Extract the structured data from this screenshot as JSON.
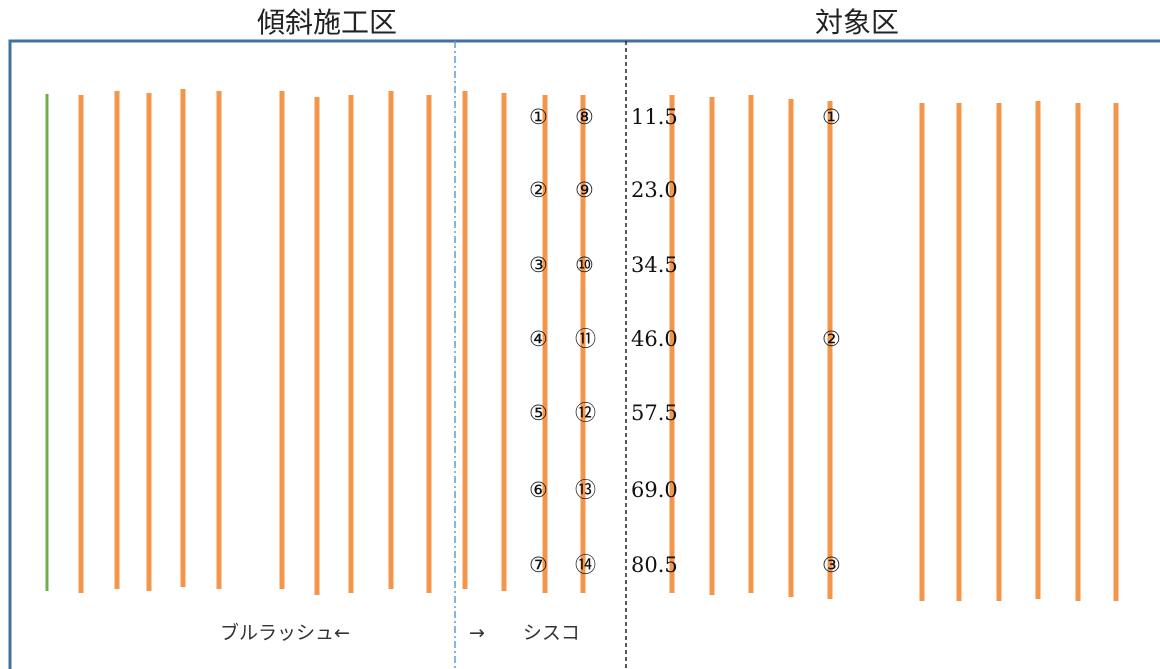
{
  "titles": {
    "left": "傾斜施工区",
    "right": "対象区"
  },
  "sampling_points": {
    "column_a": [
      "①",
      "②",
      "③",
      "④",
      "⑤",
      "⑥",
      "⑦"
    ],
    "column_b": [
      "⑧",
      "⑨",
      "⑩",
      "⑪",
      "⑫",
      "⑬",
      "⑭"
    ],
    "values": [
      "11.5",
      "23.0",
      "34.5",
      "46.0",
      "57.5",
      "69.0",
      "80.5"
    ]
  },
  "target_points": [
    "①",
    "②",
    "③"
  ],
  "direction_labels": {
    "left": "ブルラッシュ←",
    "right": "→　　シスコ"
  },
  "colors": {
    "frame": "#41719c",
    "row_line": "#f4964a",
    "edge_line": "#70ad47",
    "divider_blue": "#5b9bd5",
    "divider_black": "#222222",
    "text": "#111111"
  }
}
